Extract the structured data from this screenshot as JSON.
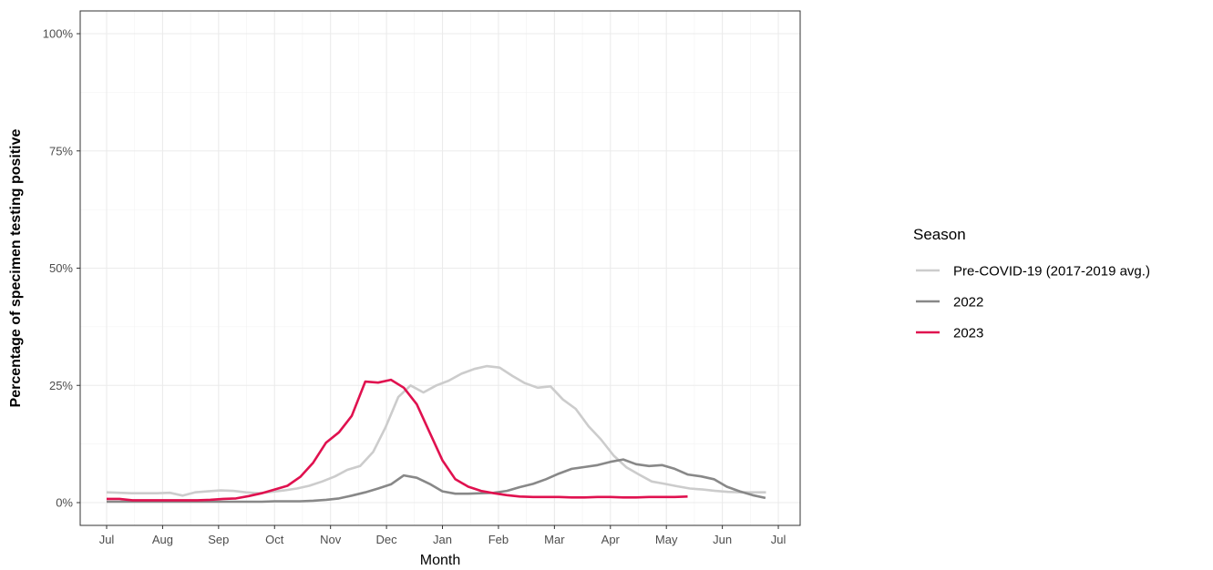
{
  "chart_data": {
    "type": "line",
    "xlabel": "Month",
    "ylabel": "Percentage of specimen testing positive",
    "ylim": [
      0,
      100
    ],
    "y_ticks": [
      0,
      25,
      50,
      75,
      100
    ],
    "y_tick_labels": [
      "0%",
      "25%",
      "50%",
      "75%",
      "100%"
    ],
    "x_ticks": [
      "Jul",
      "Aug",
      "Sep",
      "Oct",
      "Nov",
      "Dec",
      "Jan",
      "Feb",
      "Mar",
      "Apr",
      "May",
      "Jun",
      "Jul"
    ],
    "x_unit": "months since July 1",
    "grid": true,
    "legend": {
      "title": "Season",
      "position": "right"
    },
    "series": [
      {
        "name": "Pre-COVID-19 (2017-2019 avg.)",
        "color": "#cccccc",
        "x": [
          0,
          0.22,
          0.45,
          0.68,
          0.9,
          1.13,
          1.36,
          1.58,
          1.81,
          2.04,
          2.26,
          2.49,
          2.72,
          2.94,
          3.17,
          3.4,
          3.62,
          3.85,
          4.08,
          4.3,
          4.53,
          4.76,
          4.98,
          5.21,
          5.43,
          5.66,
          5.89,
          6.11,
          6.34,
          6.57,
          6.79,
          7.02,
          7.25,
          7.47,
          7.7,
          7.93,
          8.15,
          8.38,
          8.61,
          8.83,
          9.06,
          9.29,
          9.51,
          9.74,
          9.97,
          10.19,
          10.42,
          10.65,
          10.87,
          11.1,
          11.33,
          11.55,
          11.78
        ],
        "values": [
          2.2,
          2.1,
          2.0,
          2.0,
          2.0,
          2.1,
          1.5,
          2.2,
          2.4,
          2.6,
          2.5,
          2.2,
          2.0,
          2.3,
          2.6,
          3.0,
          3.6,
          4.5,
          5.6,
          7.0,
          7.8,
          10.8,
          16.0,
          22.5,
          25.0,
          23.5,
          25.0,
          26.0,
          27.5,
          28.5,
          29.1,
          28.8,
          27.0,
          25.5,
          24.5,
          24.8,
          22.0,
          20.0,
          16.3,
          13.5,
          10.0,
          7.5,
          6.0,
          4.5,
          4.0,
          3.5,
          3.0,
          2.8,
          2.5,
          2.3,
          2.2,
          2.2,
          2.2
        ]
      },
      {
        "name": "2022",
        "color": "#888888",
        "x": [
          0,
          0.23,
          0.46,
          0.69,
          0.92,
          1.15,
          1.38,
          1.62,
          1.85,
          2.08,
          2.31,
          2.54,
          2.77,
          3.0,
          3.23,
          3.46,
          3.69,
          3.92,
          4.15,
          4.38,
          4.62,
          4.85,
          5.08,
          5.31,
          5.54,
          5.77,
          6.0,
          6.23,
          6.46,
          6.69,
          6.92,
          7.15,
          7.38,
          7.62,
          7.85,
          8.08,
          8.31,
          8.54,
          8.77,
          9.0,
          9.23,
          9.46,
          9.69,
          9.92,
          10.15,
          10.38,
          10.62,
          10.85,
          11.08,
          11.31,
          11.54,
          11.77
        ],
        "values": [
          0.2,
          0.2,
          0.2,
          0.2,
          0.2,
          0.2,
          0.2,
          0.2,
          0.2,
          0.2,
          0.2,
          0.2,
          0.2,
          0.3,
          0.3,
          0.3,
          0.4,
          0.6,
          0.9,
          1.5,
          2.2,
          3.0,
          3.9,
          5.8,
          5.3,
          4.0,
          2.4,
          1.9,
          1.9,
          2.0,
          2.1,
          2.5,
          3.3,
          4.0,
          5.0,
          6.2,
          7.2,
          7.6,
          8.0,
          8.7,
          9.2,
          8.2,
          7.8,
          8.0,
          7.2,
          6.0,
          5.6,
          5.0,
          3.4,
          2.4,
          1.6,
          1.0
        ]
      },
      {
        "name": "2023",
        "color": "#e0114f",
        "x": [
          0,
          0.23,
          0.46,
          0.69,
          0.92,
          1.15,
          1.38,
          1.62,
          1.85,
          2.08,
          2.31,
          2.54,
          2.77,
          3.0,
          3.23,
          3.46,
          3.69,
          3.92,
          4.15,
          4.38,
          4.62,
          4.85,
          5.08,
          5.31,
          5.54,
          5.77,
          6.0,
          6.23,
          6.46,
          6.69,
          6.92,
          7.15,
          7.38,
          7.62,
          7.85,
          8.08,
          8.31,
          8.54,
          8.77,
          9.0,
          9.23,
          9.46,
          9.69,
          9.92,
          10.15,
          10.38
        ],
        "values": [
          0.8,
          0.8,
          0.5,
          0.5,
          0.5,
          0.5,
          0.5,
          0.5,
          0.6,
          0.8,
          0.9,
          1.4,
          2.0,
          2.8,
          3.6,
          5.5,
          8.5,
          12.8,
          15.0,
          18.5,
          25.8,
          25.6,
          26.2,
          24.5,
          21.0,
          15.0,
          9.0,
          5.0,
          3.4,
          2.5,
          2.0,
          1.6,
          1.3,
          1.2,
          1.2,
          1.2,
          1.1,
          1.1,
          1.2,
          1.2,
          1.1,
          1.1,
          1.2,
          1.2,
          1.2,
          1.3
        ]
      }
    ]
  }
}
